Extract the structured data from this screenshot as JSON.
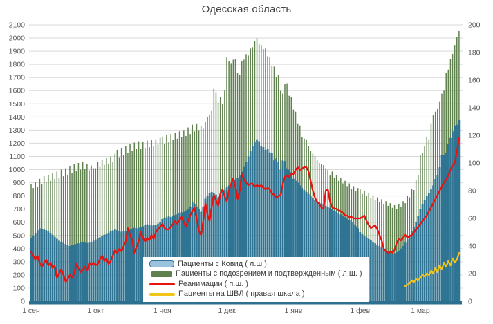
{
  "chart_data": {
    "type": "bar+line combo, daily",
    "title": "Одесская область",
    "axes": {
      "left": {
        "min": 0,
        "max": 2100,
        "step": 100
      },
      "right": {
        "min": 0,
        "max": 200,
        "step": 20
      },
      "x_ticks": [
        {
          "label": "1 сен",
          "day": 0
        },
        {
          "label": "1 окт",
          "day": 30
        },
        {
          "label": "1 ноя",
          "day": 61
        },
        {
          "label": "1 дек",
          "day": 91
        },
        {
          "label": "1 янв",
          "day": 122
        },
        {
          "label": "1 фев",
          "day": 153
        },
        {
          "label": "1 мар",
          "day": 181
        }
      ],
      "n_days": 200,
      "grid": true,
      "legend_position": "inside-bottom-left"
    },
    "colors": {
      "grid": "#d9d9d9",
      "axis_text": "#595959",
      "title_text": "#444444",
      "axis_band": "#2d6f8e",
      "background": "#ffffff"
    },
    "series": [
      {
        "name": "Пациенты с Ковид ( л.ш )",
        "type": "bar",
        "axis": "left",
        "color": "#2f7593",
        "values": [
          480,
          500,
          520,
          540,
          555,
          550,
          545,
          540,
          530,
          520,
          505,
          490,
          475,
          460,
          450,
          445,
          435,
          425,
          420,
          425,
          430,
          435,
          440,
          450,
          448,
          445,
          442,
          445,
          450,
          460,
          470,
          478,
          486,
          495,
          505,
          512,
          520,
          530,
          538,
          545,
          540,
          532,
          528,
          530,
          535,
          540,
          545,
          552,
          558,
          555,
          560,
          565,
          570,
          578,
          585,
          580,
          575,
          578,
          582,
          590,
          600,
          625,
          632,
          638,
          645,
          640,
          648,
          655,
          660,
          668,
          675,
          680,
          690,
          700,
          720,
          750,
          740,
          720,
          700,
          680,
          720,
          780,
          800,
          820,
          830,
          820,
          810,
          790,
          810,
          830,
          845,
          865,
          880,
          895,
          910,
          925,
          940,
          955,
          985,
          1020,
          1060,
          1100,
          1140,
          1180,
          1210,
          1230,
          1215,
          1180,
          1170,
          1150,
          1155,
          1130,
          1125,
          1070,
          1085,
          1060,
          1000,
          1070,
          1065,
          1010,
          1000,
          980,
          930,
          915,
          900,
          880,
          860,
          845,
          830,
          815,
          797,
          785,
          770,
          760,
          752,
          744,
          735,
          726,
          718,
          710,
          700,
          690,
          681,
          672,
          660,
          650,
          640,
          628,
          615,
          600,
          585,
          570,
          555,
          525,
          510,
          498,
          486,
          474,
          462,
          450,
          440,
          430,
          420,
          408,
          396,
          385,
          375,
          368,
          362,
          366,
          374,
          385,
          400,
          420,
          445,
          475,
          505,
          535,
          565,
          600,
          650,
          700,
          735,
          770,
          800,
          823,
          850,
          880,
          929,
          960,
          1018,
          1113,
          1110,
          1129,
          1193,
          1240,
          1290,
          1335,
          1340,
          1378
        ]
      },
      {
        "name": "Пациенты с подозрением и подтвержденным ( л.ш. )",
        "type": "bar",
        "axis": "left",
        "color": "#5e814d",
        "values": [
          890,
          860,
          905,
          870,
          930,
          890,
          950,
          905,
          960,
          915,
          975,
          930,
          985,
          940,
          1000,
          950,
          1010,
          960,
          1025,
          975,
          1040,
          990,
          1050,
          1000,
          1056,
          1005,
          1040,
          995,
          1030,
          1010,
          1010,
          1060,
          1020,
          1075,
          1035,
          1090,
          1045,
          1100,
          1060,
          1120,
          1150,
          1095,
          1165,
          1110,
          1180,
          1125,
          1195,
          1140,
          1205,
          1155,
          1215,
          1160,
          1210,
          1165,
          1220,
          1170,
          1225,
          1180,
          1230,
          1190,
          1240,
          1250,
          1195,
          1260,
          1210,
          1270,
          1225,
          1280,
          1235,
          1290,
          1245,
          1300,
          1255,
          1320,
          1270,
          1340,
          1290,
          1350,
          1300,
          1330,
          1310,
          1360,
          1400,
          1419,
          1450,
          1614,
          1588,
          1509,
          1550,
          1500,
          1600,
          1852,
          1825,
          1809,
          1835,
          1841,
          1736,
          1720,
          1825,
          1835,
          1878,
          1867,
          1920,
          1930,
          1975,
          2000,
          1957,
          1947,
          1915,
          1920,
          1862,
          1857,
          1788,
          1783,
          1704,
          1720,
          1598,
          1577,
          1651,
          1656,
          1561,
          1551,
          1456,
          1440,
          1351,
          1335,
          1245,
          1235,
          1229,
          1180,
          1140,
          1120,
          1103,
          1070,
          1050,
          1040,
          1034,
          1010,
          997,
          955,
          985,
          940,
          960,
          915,
          935,
          895,
          915,
          875,
          895,
          855,
          875,
          840,
          860,
          850,
          815,
          835,
          800,
          820,
          785,
          805,
          770,
          790,
          755,
          775,
          740,
          760,
          725,
          745,
          710,
          730,
          700,
          735,
          720,
          760,
          745,
          800,
          790,
          855,
          845,
          920,
          960,
          1113,
          1129,
          1180,
          1245,
          1229,
          1351,
          1414,
          1440,
          1460,
          1519,
          1577,
          1600,
          1736,
          1760,
          1841,
          1880,
          1947,
          2010,
          2053
        ]
      },
      {
        "name": "Реанимации ( п.ш. )",
        "type": "line",
        "axis": "right",
        "color": "#e8120e",
        "values": [
          36,
          33,
          30,
          33,
          28,
          25,
          28,
          30,
          26,
          28,
          24,
          26,
          17,
          20,
          23,
          19,
          14,
          16,
          19,
          17,
          20,
          27,
          24,
          21,
          23,
          25,
          22,
          28,
          26,
          28,
          26,
          27,
          30,
          33,
          29,
          31,
          27,
          29,
          33,
          37,
          35,
          38,
          36,
          40,
          43,
          53,
          48,
          44,
          35,
          39,
          43,
          50,
          46,
          43,
          46,
          44,
          48,
          45,
          50,
          52,
          54,
          56,
          53,
          52,
          52,
          54,
          56,
          58,
          56,
          59,
          61,
          57,
          54,
          58,
          62,
          65,
          68,
          60,
          51,
          48,
          58,
          71,
          63,
          58,
          68,
          77,
          73,
          69,
          78,
          81,
          76,
          72,
          80,
          85,
          89,
          83,
          74,
          80,
          92,
          88,
          86,
          84,
          85,
          85,
          83,
          84,
          83,
          84,
          82,
          81,
          82,
          81,
          78,
          77,
          75,
          76,
          77,
          85,
          90,
          91,
          90,
          92,
          92,
          95,
          97,
          95,
          96,
          97,
          97,
          94,
          87,
          80,
          75,
          72,
          70,
          68,
          67,
          80,
          81,
          72,
          68,
          67,
          67,
          66,
          65,
          64,
          62,
          62,
          61,
          61,
          60,
          60,
          60,
          60,
          61,
          62,
          58,
          55,
          53,
          54,
          55,
          52,
          48,
          44,
          38,
          36,
          35,
          36,
          35,
          37,
          42,
          45,
          44,
          46,
          48,
          46,
          47,
          48,
          50,
          52,
          54,
          56,
          58,
          60,
          62,
          65,
          68,
          71,
          74,
          77,
          80,
          83,
          86,
          88,
          91,
          95,
          98,
          100,
          108,
          118
        ]
      },
      {
        "name": "Пациенты на ШВЛ ( правая шкала )",
        "type": "line",
        "axis": "right",
        "color": "#f0c419",
        "start_day": 174,
        "values": [
          11,
          12,
          13,
          15,
          14,
          16,
          15,
          17,
          19,
          18,
          20,
          19,
          22,
          20,
          24,
          21,
          26,
          23,
          28,
          25,
          29,
          26,
          31,
          28,
          30,
          35
        ]
      }
    ]
  }
}
